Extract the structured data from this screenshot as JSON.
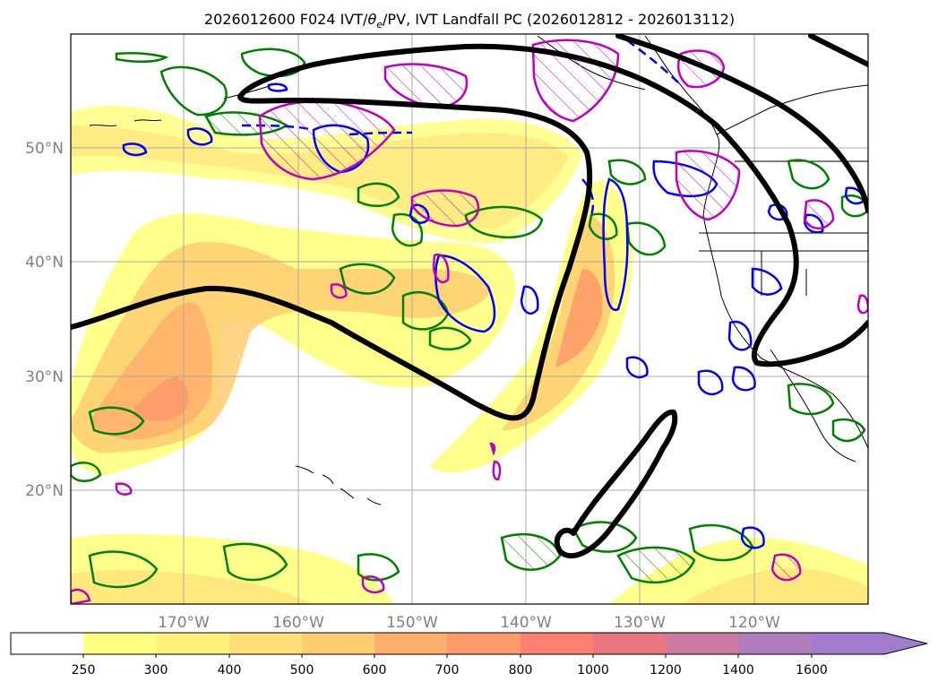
{
  "title": "2026012600 F024 IVT/θe/PV, IVT Landfall PC (2026012812 - 2026013112)",
  "title_parts": {
    "prefix": "2026012600 F024 IVT/",
    "theta": "θ",
    "theta_sub": "e",
    "suffix": "/PV, IVT Landfall PC (2026012812 - 2026013112)"
  },
  "map": {
    "lon_labels": [
      "170°W",
      "160°W",
      "150°W",
      "140°W",
      "130°W",
      "120°W"
    ],
    "lat_labels": [
      "50°N",
      "40°N",
      "30°N",
      "20°N"
    ],
    "gridline_color": "#a9a9a9",
    "label_color": "#808080"
  },
  "colorbar": {
    "ticks": [
      "250",
      "300",
      "400",
      "500",
      "600",
      "700",
      "800",
      "1000",
      "1200",
      "1400",
      "1600"
    ],
    "colors": [
      "#ffffff",
      "#ffff80",
      "#fff27a",
      "#ffe076",
      "#ffcc70",
      "#ffb16c",
      "#ff9a6a",
      "#ff8070",
      "#e8787e",
      "#cc7aa2",
      "#b07cbc",
      "#a27ccc"
    ]
  },
  "contour_colors": {
    "landfall_pc": "#000000",
    "theta_e": "#008000",
    "pv": "#0000ff",
    "pv_hatch": "#c000c0"
  }
}
